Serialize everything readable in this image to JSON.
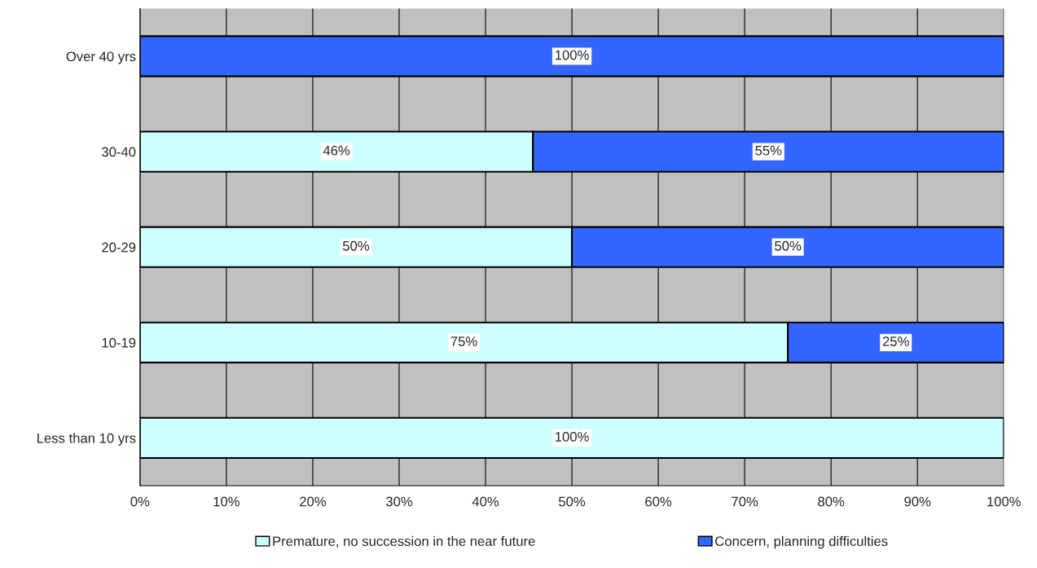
{
  "chart_data": {
    "type": "bar",
    "orientation": "horizontal",
    "stacked": true,
    "categories": [
      "Over 40 yrs",
      "30-40",
      "20-29",
      "10-19",
      "Less than 10 yrs"
    ],
    "series": [
      {
        "name": "Premature, no succession in the near future",
        "color": "#ccffff",
        "values": [
          null,
          45.5,
          50,
          75,
          100
        ],
        "value_labels": [
          null,
          "46%",
          "50%",
          "75%",
          "100%"
        ]
      },
      {
        "name": "Concern, planning difficulties",
        "color": "#3366ff",
        "values": [
          100,
          54.5,
          50,
          25,
          null
        ],
        "value_labels": [
          "100%",
          "55%",
          "50%",
          "25%",
          null
        ]
      }
    ],
    "xlim": [
      0,
      100
    ],
    "xticks": [
      {
        "value": 0,
        "label": "0%"
      },
      {
        "value": 10,
        "label": "10%"
      },
      {
        "value": 20,
        "label": "20%"
      },
      {
        "value": 30,
        "label": "30%"
      },
      {
        "value": 40,
        "label": "40%"
      },
      {
        "value": 50,
        "label": "50%"
      },
      {
        "value": 60,
        "label": "60%"
      },
      {
        "value": 70,
        "label": "70%"
      },
      {
        "value": 80,
        "label": "80%"
      },
      {
        "value": 90,
        "label": "90%"
      },
      {
        "value": 100,
        "label": "100%"
      }
    ],
    "grid": "x",
    "legend": "bottom"
  }
}
